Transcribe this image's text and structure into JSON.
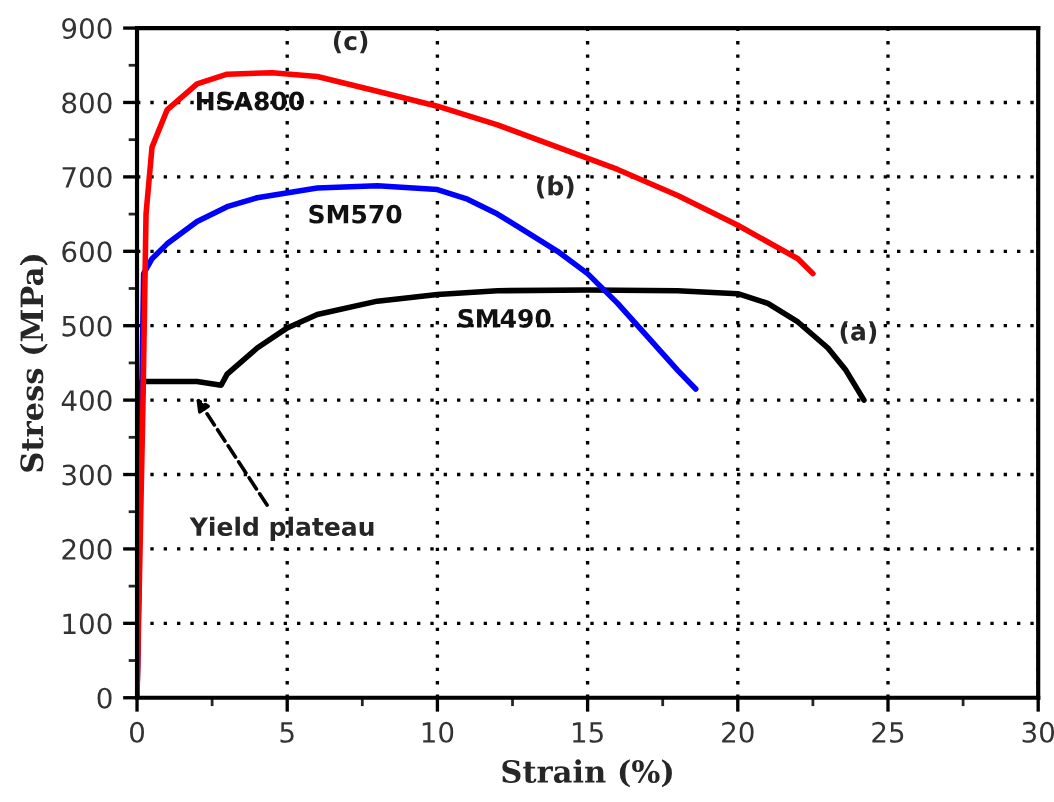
{
  "chart_data": {
    "type": "line",
    "xlabel": "Strain (%)",
    "ylabel": "Stress (MPa)",
    "xlim": [
      0,
      30
    ],
    "xticks": [
      0,
      5,
      10,
      15,
      20,
      25,
      30
    ],
    "ylim": [
      0,
      900
    ],
    "yticks": [
      0,
      100,
      200,
      300,
      400,
      500,
      600,
      700,
      800,
      900
    ],
    "grid": true,
    "legend": false,
    "marker": "none",
    "line_style": "solid",
    "series": [
      {
        "name": "SM490",
        "color": "#000000",
        "x": [
          0,
          0.15,
          1,
          2,
          2.8,
          3,
          4,
          5,
          6,
          8,
          10,
          12,
          15,
          18,
          20,
          21,
          22,
          23,
          23.6,
          24.2
        ],
        "values": [
          0,
          425,
          425,
          425,
          420,
          435,
          470,
          497,
          515,
          533,
          542,
          547,
          548,
          547,
          543,
          530,
          505,
          470,
          440,
          400
        ]
      },
      {
        "name": "SM570",
        "color": "#0000ff",
        "x": [
          0,
          0.22,
          0.5,
          1,
          2,
          3,
          4,
          6,
          8,
          10,
          11,
          12,
          13,
          14,
          15,
          16,
          17,
          18,
          18.6
        ],
        "values": [
          0,
          570,
          590,
          610,
          640,
          660,
          672,
          685,
          688,
          683,
          670,
          650,
          625,
          600,
          570,
          530,
          485,
          440,
          415
        ]
      },
      {
        "name": "HSA800",
        "color": "#ff0000",
        "x": [
          0,
          0.2,
          0.3,
          0.5,
          1,
          2,
          3,
          4.5,
          6,
          8,
          10,
          12,
          14,
          16,
          18,
          20,
          22,
          22.5
        ],
        "values": [
          0,
          400,
          650,
          740,
          790,
          825,
          838,
          840,
          835,
          815,
          795,
          770,
          740,
          710,
          675,
          635,
          590,
          570
        ]
      }
    ],
    "annotations": [
      "(a)",
      "(b)",
      "(c)",
      {
        "text": "Yield plateau",
        "x": 1.87,
        "y": 410
      }
    ]
  }
}
